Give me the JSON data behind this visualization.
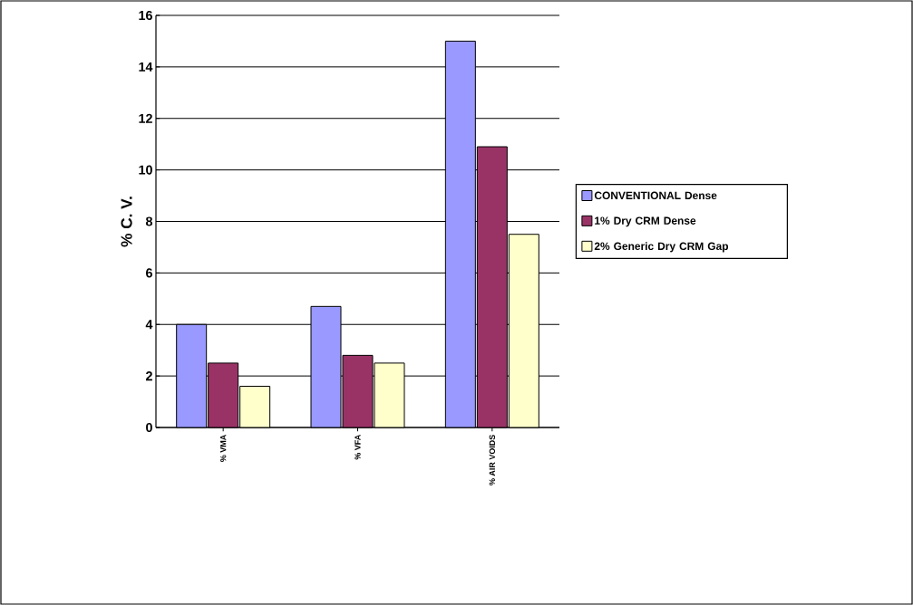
{
  "chart_data": {
    "type": "bar",
    "ylabel": "% C. V.",
    "categories": [
      "% VMA",
      "% VFA",
      "% AIR VOIDS"
    ],
    "series": [
      {
        "name": "CONVENTIONAL Dense",
        "color": "#9999ff",
        "values": [
          4.0,
          4.7,
          15.0
        ]
      },
      {
        "name": "1% Dry CRM Dense",
        "color": "#993366",
        "values": [
          2.5,
          2.8,
          10.9
        ]
      },
      {
        "name": "2% Generic Dry CRM Gap",
        "color": "#ffffcc",
        "values": [
          1.6,
          2.5,
          7.5
        ]
      }
    ],
    "ylim": [
      0,
      16
    ],
    "yticks": [
      0,
      2,
      4,
      6,
      8,
      10,
      12,
      14,
      16
    ],
    "grid": "y",
    "legend": "right"
  }
}
